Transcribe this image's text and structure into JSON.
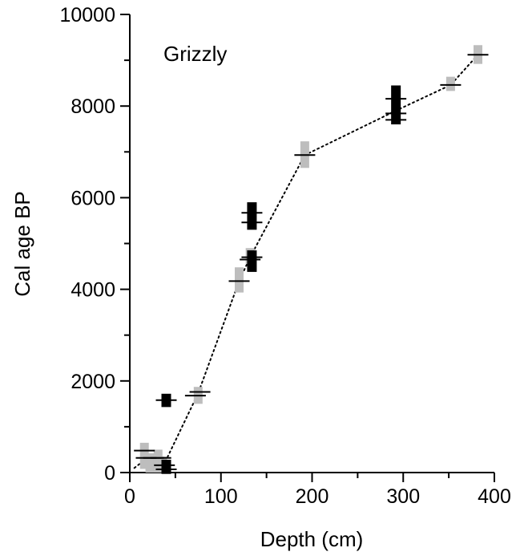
{
  "chart_data": {
    "type": "scatter",
    "title": "",
    "annotation": "Grizzly",
    "xlabel": "Depth (cm)",
    "ylabel": "Cal age BP",
    "xlim": [
      0,
      400
    ],
    "ylim": [
      0,
      10000
    ],
    "x_ticks": [
      0,
      100,
      200,
      300,
      400
    ],
    "x_tick_labels": [
      "0",
      "100",
      "200",
      "300",
      "400"
    ],
    "y_ticks": [
      0,
      2000,
      4000,
      6000,
      8000,
      10000
    ],
    "y_tick_labels": [
      "0",
      "2000",
      "4000",
      "6000",
      "8000",
      "10000"
    ],
    "grid": false,
    "legend": "none",
    "colors": {
      "included": "#bdbdbd",
      "excluded": "#000000",
      "model": "#000000"
    },
    "dates": [
      {
        "depth": 16,
        "low": 80,
        "high": 650,
        "status": "included"
      },
      {
        "depth": 22,
        "low": 0,
        "high": 420,
        "status": "included"
      },
      {
        "depth": 31,
        "low": 0,
        "high": 500,
        "status": "included"
      },
      {
        "depth": 36,
        "low": 50,
        "high": 350,
        "status": "included"
      },
      {
        "depth": 40,
        "low": -30,
        "high": 280,
        "status": "excluded"
      },
      {
        "depth": 40,
        "low": 1430,
        "high": 1720,
        "status": "excluded"
      },
      {
        "depth": 75,
        "low": 1500,
        "high": 1870,
        "status": "included"
      },
      {
        "depth": 120,
        "low": 3930,
        "high": 4480,
        "status": "included"
      },
      {
        "depth": 132,
        "low": 4550,
        "high": 4900,
        "status": "included"
      },
      {
        "depth": 134,
        "low": 4380,
        "high": 4850,
        "status": "excluded"
      },
      {
        "depth": 134,
        "low": 5300,
        "high": 5900,
        "status": "excluded"
      },
      {
        "depth": 192,
        "low": 6650,
        "high": 7230,
        "status": "included"
      },
      {
        "depth": 292,
        "low": 7600,
        "high": 8450,
        "status": "excluded"
      },
      {
        "depth": 352,
        "low": 8330,
        "high": 8640,
        "status": "included"
      },
      {
        "depth": 382,
        "low": 8920,
        "high": 9330,
        "status": "included"
      }
    ],
    "markers": [
      {
        "depth": 16,
        "age": 480
      },
      {
        "depth": 18,
        "age": 320
      },
      {
        "depth": 26,
        "age": 320
      },
      {
        "depth": 34,
        "age": 320
      },
      {
        "depth": 38,
        "age": 160
      },
      {
        "depth": 40,
        "age": 70
      },
      {
        "depth": 40,
        "age": 1580
      },
      {
        "depth": 72,
        "age": 1680
      },
      {
        "depth": 77,
        "age": 1760
      },
      {
        "depth": 120,
        "age": 4180
      },
      {
        "depth": 132,
        "age": 4650
      },
      {
        "depth": 134,
        "age": 4700
      },
      {
        "depth": 134,
        "age": 5460
      },
      {
        "depth": 134,
        "age": 5670
      },
      {
        "depth": 192,
        "age": 6930
      },
      {
        "depth": 292,
        "age": 7700
      },
      {
        "depth": 292,
        "age": 7840
      },
      {
        "depth": 292,
        "age": 8160
      },
      {
        "depth": 352,
        "age": 8460
      },
      {
        "depth": 382,
        "age": 9120
      }
    ],
    "age_model": {
      "depth": [
        5,
        20,
        40,
        75,
        120,
        132,
        192,
        292,
        352,
        382
      ],
      "age": [
        100,
        330,
        280,
        1730,
        4180,
        4700,
        6930,
        7900,
        8460,
        9120
      ]
    }
  }
}
